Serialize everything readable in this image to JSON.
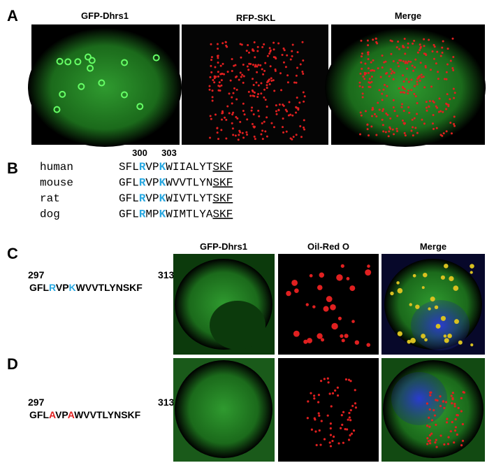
{
  "panel_a": {
    "label": "A",
    "titles": [
      "GFP-Dhrs1",
      "RFP-SKL",
      "Merge"
    ]
  },
  "panel_b": {
    "label": "B",
    "positions": [
      300,
      303
    ],
    "rows": [
      {
        "species": "human",
        "sequence": [
          "SFL",
          "R",
          "VP",
          "K",
          "WIIALYT",
          "SKF"
        ]
      },
      {
        "species": "mouse",
        "sequence": [
          "GFL",
          "R",
          "VP",
          "K",
          "WVVTLYN",
          "SKF"
        ]
      },
      {
        "species": "rat",
        "sequence": [
          "GFL",
          "R",
          "VP",
          "K",
          "WIVTLYT",
          "SKF"
        ]
      },
      {
        "species": "dog",
        "sequence": [
          "GFL",
          "R",
          "MP",
          "K",
          "WIMTLYA",
          "SKF"
        ]
      }
    ]
  },
  "panel_c": {
    "label": "C",
    "titles": [
      "GFP-Dhrs1",
      "Oil-Red O",
      "Merge"
    ],
    "start": 297,
    "end": 313,
    "sequence": [
      "GFL",
      "R",
      "VP",
      "K",
      "WVVTLYNSKF"
    ]
  },
  "panel_d": {
    "label": "D",
    "start": 297,
    "end": 313,
    "sequence": [
      "GFL",
      "A",
      "VP",
      "A",
      "WVVTLYNSKF"
    ]
  }
}
